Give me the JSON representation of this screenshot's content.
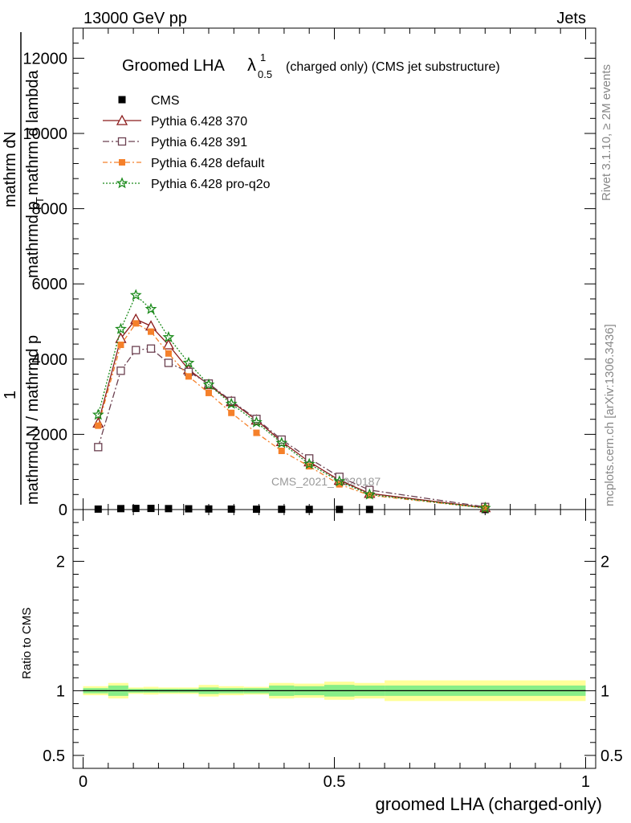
{
  "header": {
    "left": "13000 GeV pp",
    "right": "Jets"
  },
  "side_labels": {
    "rivet": "Rivet 3.1.10, ≥ 2M events",
    "mcplots": "mcplots.cern.ch [arXiv:1306.3436]"
  },
  "chart_data": {
    "type": "line",
    "title_main": "Groomed LHA",
    "title_lambda": "λ",
    "title_sup": "1",
    "title_sub": "0.5",
    "title_rest": "(charged only) (CMS jet substructure)",
    "ylabel_parts": {
      "one": "1",
      "denominator": "mathrmd N / mathrmd p",
      "numerator": "mathrm d",
      "numerator_n": "N",
      "line2": "mathrmd p",
      "line2_t": "T",
      "line2_rest": " mathrm d lambda"
    },
    "xlabel": "groomed LHA (charged-only)",
    "ratio_ylabel": "Ratio to CMS",
    "watermark": "CMS_2021_I1920187",
    "xlim": [
      -0.02,
      1.02
    ],
    "ylim": [
      0,
      12800
    ],
    "yticks": [
      0,
      2000,
      4000,
      6000,
      8000,
      10000,
      12000
    ],
    "yticklabels": [
      "0",
      "2000",
      "4000",
      "6000",
      "8000",
      "10000",
      "12000"
    ],
    "xticks": [
      0,
      0.5,
      1
    ],
    "xticklabels": [
      "0",
      "0.5",
      "1"
    ],
    "ratio_ylim": [
      0.4,
      2.4
    ],
    "ratio_ticks": [
      0.5,
      1,
      2
    ],
    "ratio_ticklabels": [
      "0.5",
      "1",
      "2"
    ],
    "ratio_ticklabels_right": [
      "0.5",
      "1",
      "2"
    ],
    "legend_position": "top-left",
    "x": [
      0.03,
      0.075,
      0.105,
      0.135,
      0.17,
      0.21,
      0.25,
      0.295,
      0.345,
      0.395,
      0.45,
      0.51,
      0.57,
      0.8
    ],
    "bin_edges": [
      0,
      0.05,
      0.09,
      0.12,
      0.15,
      0.19,
      0.23,
      0.27,
      0.32,
      0.37,
      0.42,
      0.48,
      0.54,
      0.6,
      1.0
    ],
    "series": [
      {
        "name": "CMS",
        "marker": "square",
        "color": "#000000",
        "dash": "",
        "values": [
          12,
          25,
          30,
          30,
          25,
          20,
          16,
          12,
          9,
          7,
          5,
          4,
          3,
          1
        ]
      },
      {
        "name": "Pythia 6.428 370",
        "marker": "triangle-open",
        "color": "#8b1a1a",
        "dash": "",
        "values": [
          2300,
          4550,
          5060,
          4880,
          4380,
          3720,
          3320,
          2870,
          2380,
          1810,
          1270,
          780,
          430,
          50
        ]
      },
      {
        "name": "Pythia 6.428 391",
        "marker": "square-open",
        "color": "#6b4050",
        "dash": "8,3,2,3",
        "values": [
          1660,
          3690,
          4240,
          4280,
          3900,
          3660,
          3350,
          2890,
          2410,
          1860,
          1360,
          870,
          520,
          70
        ]
      },
      {
        "name": "Pythia 6.428 default",
        "marker": "square-filled",
        "color": "#f5802a",
        "dash": "6,3,2,3",
        "values": [
          2230,
          4380,
          4950,
          4730,
          4150,
          3540,
          3100,
          2570,
          2040,
          1560,
          1150,
          670,
          380,
          40
        ]
      },
      {
        "name": "Pythia 6.428 pro-q2o",
        "marker": "star",
        "color": "#1a8a1a",
        "dash": "2,2",
        "values": [
          2520,
          4800,
          5700,
          5330,
          4580,
          3900,
          3320,
          2810,
          2320,
          1770,
          1210,
          750,
          400,
          40
        ]
      }
    ],
    "ratio_band_inner": [
      [
        0.98,
        1.02
      ],
      [
        0.96,
        1.04
      ],
      [
        0.985,
        1.015
      ],
      [
        0.985,
        1.015
      ],
      [
        0.985,
        1.015
      ],
      [
        0.985,
        1.015
      ],
      [
        0.975,
        1.025
      ],
      [
        0.98,
        1.02
      ],
      [
        0.98,
        1.02
      ],
      [
        0.96,
        1.04
      ],
      [
        0.965,
        1.035
      ],
      [
        0.955,
        1.045
      ],
      [
        0.96,
        1.04
      ],
      [
        0.96,
        1.04
      ]
    ],
    "ratio_band_outer": [
      [
        0.965,
        1.035
      ],
      [
        0.94,
        1.06
      ],
      [
        0.975,
        1.025
      ],
      [
        0.97,
        1.03
      ],
      [
        0.975,
        1.025
      ],
      [
        0.975,
        1.025
      ],
      [
        0.955,
        1.045
      ],
      [
        0.965,
        1.035
      ],
      [
        0.97,
        1.03
      ],
      [
        0.94,
        1.06
      ],
      [
        0.945,
        1.055
      ],
      [
        0.93,
        1.07
      ],
      [
        0.94,
        1.06
      ],
      [
        0.92,
        1.08
      ]
    ]
  }
}
